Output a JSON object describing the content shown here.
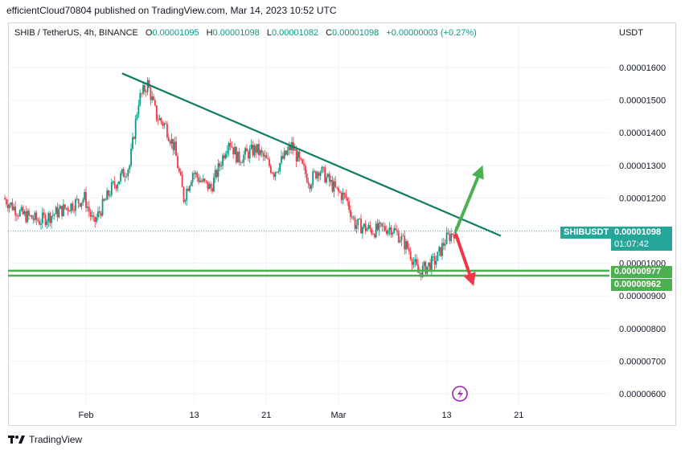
{
  "header": {
    "publisher": "efficientCloud70804",
    "published_on": "published on TradingView.com, Mar 14, 2023 10:52 UTC"
  },
  "legend": {
    "symbol": "SHIB / TetherUS, 4h, BINANCE",
    "open_label": "O",
    "open": "0.00001095",
    "high_label": "H",
    "high": "0.00001098",
    "low_label": "L",
    "low": "0.00001082",
    "close_label": "C",
    "close": "0.00001098",
    "change": "+0.00000003 (+0.27%)"
  },
  "price_axis_unit": "USDT",
  "last_price_tag": {
    "symbol": "SHIBUSDT",
    "price": "0.00001098",
    "countdown": "01:07:42"
  },
  "support_tags": [
    "0.00000977",
    "0.00000962"
  ],
  "branding": "TradingView",
  "colors": {
    "up_candle": "#089981",
    "down_candle": "#f23645",
    "trendline": "#0d7d62",
    "support_line": "#4caf50",
    "up_arrow": "#4caf50",
    "down_arrow": "#f23645",
    "tag_green": "#26a69a"
  },
  "chart_data": {
    "type": "candlestick",
    "title": "SHIB / TetherUS, 4h, BINANCE",
    "y_ticks": [
      "0.00001600",
      "0.00001500",
      "0.00001400",
      "0.00001300",
      "0.00001200",
      "0.00001000",
      "0.00000900",
      "0.00000800",
      "0.00000700",
      "0.00000600"
    ],
    "y_tick_values": [
      1.6e-05,
      1.5e-05,
      1.4e-05,
      1.3e-05,
      1.2e-05,
      1e-05,
      9e-06,
      8e-06,
      7e-06,
      6e-06
    ],
    "x_ticks": [
      "Feb",
      "13",
      "21",
      "Mar",
      "13",
      "21"
    ],
    "x_tick_dates": [
      "2023-02-01",
      "2023-02-13",
      "2023-02-21",
      "2023-03-01",
      "2023-03-13",
      "2023-03-21"
    ],
    "date_range": [
      "2023-01-23",
      "2023-03-25"
    ],
    "ylim": [
      5.6e-06,
      1.72e-05
    ],
    "last_price": 1.098e-05,
    "path_anchors": [
      [
        "2023-01-23",
        1.2e-05
      ],
      [
        "2023-01-25",
        1.15e-05
      ],
      [
        "2023-01-27",
        1.13e-05
      ],
      [
        "2023-01-30",
        1.17e-05
      ],
      [
        "2023-02-01",
        1.2e-05
      ],
      [
        "2023-02-02",
        1.12e-05
      ],
      [
        "2023-02-04",
        1.23e-05
      ],
      [
        "2023-02-06",
        1.3e-05
      ],
      [
        "2023-02-07",
        1.5e-05
      ],
      [
        "2023-02-08",
        1.55e-05
      ],
      [
        "2023-02-09",
        1.45e-05
      ],
      [
        "2023-02-10",
        1.42e-05
      ],
      [
        "2023-02-11",
        1.35e-05
      ],
      [
        "2023-02-12",
        1.2e-05
      ],
      [
        "2023-02-13",
        1.28e-05
      ],
      [
        "2023-02-14",
        1.25e-05
      ],
      [
        "2023-02-15",
        1.23e-05
      ],
      [
        "2023-02-16",
        1.3e-05
      ],
      [
        "2023-02-17",
        1.38e-05
      ],
      [
        "2023-02-18",
        1.32e-05
      ],
      [
        "2023-02-20",
        1.35e-05
      ],
      [
        "2023-02-21",
        1.32e-05
      ],
      [
        "2023-02-22",
        1.28e-05
      ],
      [
        "2023-02-24",
        1.36e-05
      ],
      [
        "2023-02-25",
        1.3e-05
      ],
      [
        "2023-02-26",
        1.25e-05
      ],
      [
        "2023-02-27",
        1.29e-05
      ],
      [
        "2023-03-01",
        1.22e-05
      ],
      [
        "2023-03-02",
        1.2e-05
      ],
      [
        "2023-03-03",
        1.12e-05
      ],
      [
        "2023-03-05",
        1.1e-05
      ],
      [
        "2023-03-07",
        1.11e-05
      ],
      [
        "2023-03-08",
        1.08e-05
      ],
      [
        "2023-03-09",
        1.04e-05
      ],
      [
        "2023-03-10",
        9.7e-06
      ],
      [
        "2023-03-11",
        9.9e-06
      ],
      [
        "2023-03-12",
        1.01e-05
      ],
      [
        "2023-03-13",
        1.07e-05
      ],
      [
        "2023-03-14",
        1.098e-05
      ]
    ],
    "drawings": {
      "trendline": {
        "start": [
          "2023-02-05",
          1.582e-05
        ],
        "end": [
          "2023-03-19",
          1.084e-05
        ]
      },
      "support_lines": [
        9.77e-06,
        9.62e-06
      ],
      "up_arrow": {
        "from": [
          "2023-03-14",
          1.098e-05
        ],
        "to": [
          "2023-03-17",
          1.3e-05
        ]
      },
      "down_arrow": {
        "from": [
          "2023-03-14",
          1.09e-05
        ],
        "to": [
          "2023-03-16",
          9.3e-06
        ]
      }
    }
  }
}
